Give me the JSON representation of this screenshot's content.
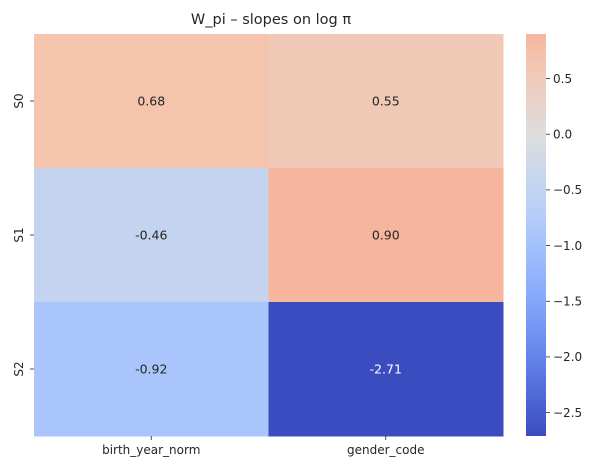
{
  "chart_data": {
    "type": "heatmap",
    "title": "W_pi  –  slopes on log π",
    "x_categories": [
      "birth_year_norm",
      "gender_code"
    ],
    "y_categories": [
      "S0",
      "S1",
      "S2"
    ],
    "values": [
      [
        0.68,
        0.55
      ],
      [
        -0.46,
        0.9
      ],
      [
        -0.92,
        -2.71
      ]
    ],
    "value_labels": [
      [
        "0.68",
        "0.55"
      ],
      [
        "-0.46",
        "0.90"
      ],
      [
        "-0.92",
        "-2.71"
      ]
    ],
    "colorbar": {
      "colormap": "coolwarm",
      "range": [
        -2.71,
        0.9
      ],
      "ticks": [
        -2.5,
        -2.0,
        -1.5,
        -1.0,
        -0.5,
        0.0,
        0.5
      ],
      "tick_labels": [
        "−2.5",
        "−2.0",
        "−1.5",
        "−1.0",
        "−0.5",
        "0.0",
        "0.5"
      ]
    },
    "xlabel": "",
    "ylabel": "",
    "grid": false
  }
}
